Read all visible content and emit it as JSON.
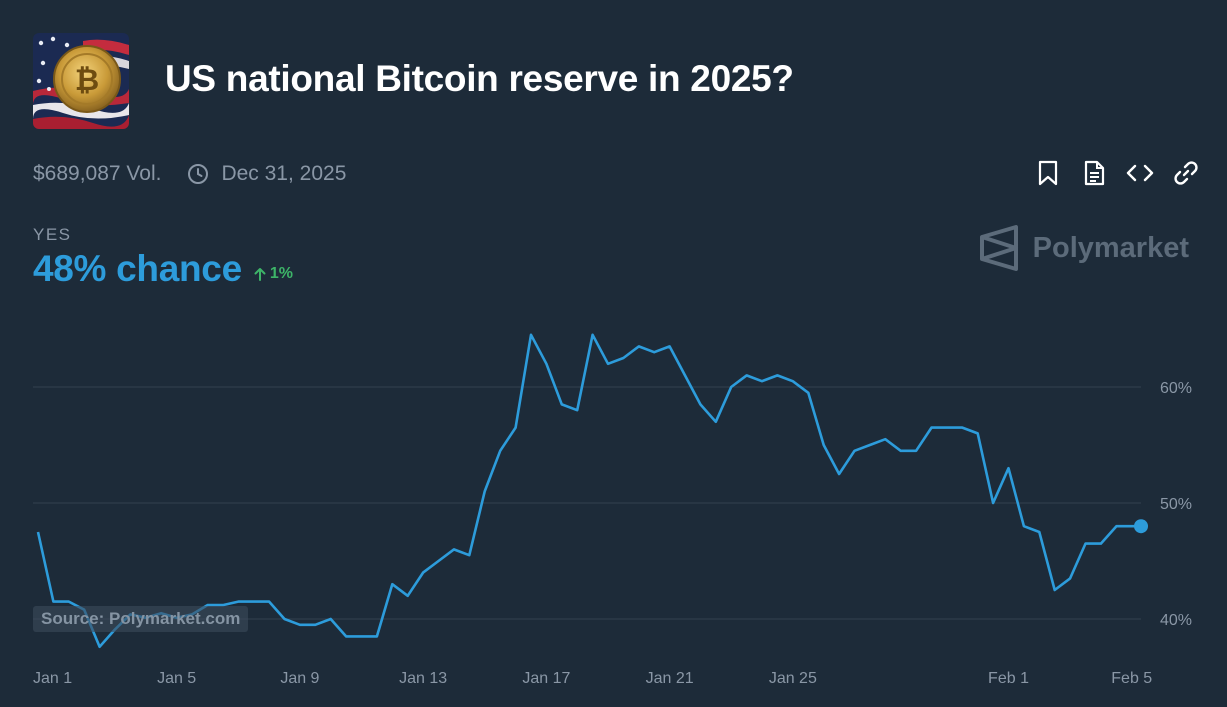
{
  "header": {
    "title": "US national Bitcoin reserve in 2025?",
    "volume": "$689,087 Vol.",
    "end_date": "Dec 31, 2025"
  },
  "actions": [
    {
      "name": "bookmark-icon"
    },
    {
      "name": "document-icon"
    },
    {
      "name": "embed-code-icon"
    },
    {
      "name": "link-icon"
    }
  ],
  "outcome": {
    "label": "YES",
    "chance": "48% chance",
    "change": "1%"
  },
  "brand": {
    "name": "Polymarket"
  },
  "watermark": "Source: Polymarket.com",
  "colors": {
    "line": "#2d9cdb",
    "positive": "#3db468",
    "background": "#1d2b39"
  },
  "chart_data": {
    "type": "line",
    "x_ticks": [
      "Jan 1",
      "Jan 5",
      "Jan 9",
      "Jan 13",
      "Jan 17",
      "Jan 21",
      "Jan 25",
      "Feb 1",
      "Feb 5"
    ],
    "y_ticks": [
      "40%",
      "50%",
      "60%"
    ],
    "ylim": [
      37,
      66
    ],
    "xlim": [
      0,
      35.8
    ],
    "grid": true,
    "series": [
      {
        "color": "#2d9cdb",
        "x": [
          0,
          0.5,
          1,
          1.5,
          2,
          2.5,
          3,
          3.5,
          4,
          4.5,
          5,
          5.5,
          6,
          6.5,
          7,
          7.5,
          8,
          8.5,
          9,
          9.5,
          10,
          10.5,
          11,
          11.5,
          12,
          12.5,
          13,
          13.5,
          14,
          14.5,
          15,
          15.5,
          16,
          16.5,
          17,
          17.5,
          18,
          18.5,
          19,
          19.5,
          20,
          20.5,
          21,
          21.5,
          22,
          22.5,
          23,
          23.5,
          24,
          24.5,
          25,
          25.5,
          26,
          26.5,
          27,
          27.5,
          28,
          28.5,
          29,
          29.5,
          30,
          30.5,
          31,
          31.5,
          32,
          32.5,
          33,
          33.5,
          34,
          34.5,
          35,
          35.5,
          35.8
        ],
        "y": [
          47.5,
          41.5,
          41.5,
          40.8,
          37.6,
          39.1,
          40.4,
          40.1,
          40.5,
          40.1,
          40.4,
          41.2,
          41.2,
          41.5,
          41.5,
          41.5,
          40.0,
          39.5,
          39.5,
          40.0,
          38.5,
          38.5,
          38.5,
          43.0,
          42.0,
          44.0,
          45.0,
          46.0,
          45.5,
          51.0,
          54.5,
          56.5,
          64.5,
          62.0,
          58.5,
          58.0,
          64.5,
          62.0,
          62.5,
          63.5,
          63.0,
          63.5,
          61.0,
          58.5,
          57.0,
          60.0,
          61.0,
          60.5,
          61.0,
          60.5,
          59.5,
          55.0,
          52.5,
          54.5,
          55.0,
          55.5,
          54.5,
          54.5,
          56.5,
          56.5,
          56.5,
          56.0,
          50.0,
          53.0,
          48.0,
          47.5,
          42.5,
          43.5,
          46.5,
          46.5,
          48.0,
          48.0,
          48.0
        ]
      }
    ]
  }
}
